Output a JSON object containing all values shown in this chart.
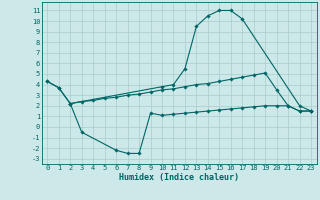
{
  "xlabel": "Humidex (Indice chaleur)",
  "bg_color": "#cce8e8",
  "line_color": "#006666",
  "grid_color": "#aacccc",
  "x_ticks": [
    0,
    1,
    2,
    3,
    4,
    5,
    6,
    7,
    8,
    9,
    10,
    11,
    12,
    13,
    14,
    15,
    16,
    17,
    18,
    19,
    20,
    21,
    22,
    23
  ],
  "y_ticks": [
    -3,
    -2,
    -1,
    0,
    1,
    2,
    3,
    4,
    5,
    6,
    7,
    8,
    9,
    10,
    11
  ],
  "ylim": [
    -3.5,
    11.8
  ],
  "xlim": [
    -0.5,
    23.5
  ],
  "line1_x": [
    0,
    1,
    2,
    10,
    11,
    12,
    13,
    14,
    15,
    16,
    17,
    22,
    23
  ],
  "line1_y": [
    4.3,
    3.7,
    2.2,
    3.8,
    4.0,
    5.5,
    9.5,
    10.5,
    11.0,
    11.0,
    10.2,
    2.0,
    1.5
  ],
  "line2_x": [
    0,
    1,
    2,
    3,
    4,
    5,
    6,
    7,
    8,
    9,
    10,
    11,
    12,
    13,
    14,
    15,
    16,
    17,
    18,
    19,
    20,
    21,
    22,
    23
  ],
  "line2_y": [
    4.3,
    3.7,
    2.2,
    2.4,
    2.5,
    2.7,
    2.8,
    3.0,
    3.1,
    3.3,
    3.5,
    3.6,
    3.8,
    4.0,
    4.1,
    4.3,
    4.5,
    4.7,
    4.9,
    5.1,
    3.5,
    2.0,
    1.5,
    1.5
  ],
  "line3_x": [
    2,
    3,
    6,
    7,
    8,
    9,
    10,
    11,
    12,
    13,
    14,
    15,
    16,
    17,
    18,
    19,
    20,
    21,
    22,
    23
  ],
  "line3_y": [
    2.2,
    -0.5,
    -2.2,
    -2.5,
    -2.5,
    1.3,
    1.1,
    1.2,
    1.3,
    1.4,
    1.5,
    1.6,
    1.7,
    1.8,
    1.9,
    2.0,
    2.0,
    2.0,
    1.5,
    1.5
  ],
  "xlabel_fontsize": 6.0,
  "tick_fontsize": 5.0,
  "marker_size": 1.8,
  "line_width": 0.8
}
